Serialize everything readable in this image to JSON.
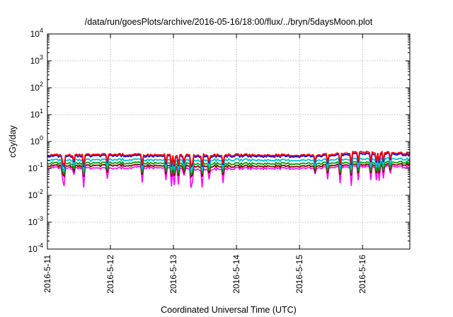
{
  "chart_data": {
    "type": "line",
    "title": "/data/run/goesPlots/archive/2016-05-16/18:00/flux/../bryn/5daysMoon.plot",
    "xlabel": "Coordinated Universal Time (UTC)",
    "ylabel": "cGy/day",
    "yscale": "log",
    "ylim": [
      0.0001,
      10000
    ],
    "y_ticks": [
      {
        "value": 0.0001,
        "base": "10",
        "exp": "-4"
      },
      {
        "value": 0.001,
        "base": "10",
        "exp": "-3"
      },
      {
        "value": 0.01,
        "base": "10",
        "exp": "-2"
      },
      {
        "value": 0.1,
        "base": "10",
        "exp": "-1"
      },
      {
        "value": 1,
        "base": "10",
        "exp": "0"
      },
      {
        "value": 10,
        "base": "10",
        "exp": "1"
      },
      {
        "value": 100,
        "base": "10",
        "exp": "2"
      },
      {
        "value": 1000,
        "base": "10",
        "exp": "3"
      },
      {
        "value": 10000,
        "base": "10",
        "exp": "4"
      }
    ],
    "xlim": [
      "2016-05-11",
      "2016-05-16 18:00"
    ],
    "x_ticks": [
      "2016-5-11",
      "2016-5-12",
      "2016-5-13",
      "2016-5-14",
      "2016-5-15",
      "2016-5-16"
    ],
    "grid": true,
    "legend": "none",
    "series": [
      {
        "color": "#ff00ff",
        "x": [
          "2016-05-11 00:00",
          "2016-05-11 12:00",
          "2016-05-12 00:00",
          "2016-05-12 12:00",
          "2016-05-13 00:00",
          "2016-05-13 12:00",
          "2016-05-14 00:00",
          "2016-05-14 12:00",
          "2016-05-15 00:00",
          "2016-05-15 12:00",
          "2016-05-16 00:00",
          "2016-05-16 12:00",
          "2016-05-16 18:00"
        ],
        "values": [
          0.11,
          0.1,
          0.1,
          0.11,
          0.1,
          0.09,
          0.1,
          0.1,
          0.1,
          0.11,
          0.12,
          0.12,
          0.11
        ]
      },
      {
        "color": "#800000",
        "x": [
          "2016-05-11 00:00",
          "2016-05-11 12:00",
          "2016-05-12 00:00",
          "2016-05-12 12:00",
          "2016-05-13 00:00",
          "2016-05-13 12:00",
          "2016-05-14 00:00",
          "2016-05-14 12:00",
          "2016-05-15 00:00",
          "2016-05-15 12:00",
          "2016-05-16 00:00",
          "2016-05-16 12:00",
          "2016-05-16 18:00"
        ],
        "values": [
          0.13,
          0.12,
          0.13,
          0.13,
          0.12,
          0.12,
          0.12,
          0.12,
          0.12,
          0.13,
          0.14,
          0.14,
          0.14
        ]
      },
      {
        "color": "#00a000",
        "x": [
          "2016-05-11 00:00",
          "2016-05-11 12:00",
          "2016-05-12 00:00",
          "2016-05-12 12:00",
          "2016-05-13 00:00",
          "2016-05-13 12:00",
          "2016-05-14 00:00",
          "2016-05-14 12:00",
          "2016-05-15 00:00",
          "2016-05-15 12:00",
          "2016-05-16 00:00",
          "2016-05-16 12:00",
          "2016-05-16 18:00"
        ],
        "values": [
          0.16,
          0.15,
          0.16,
          0.16,
          0.15,
          0.15,
          0.15,
          0.15,
          0.15,
          0.16,
          0.17,
          0.17,
          0.17
        ]
      },
      {
        "color": "#00c0d0",
        "x": [
          "2016-05-11 00:00",
          "2016-05-11 12:00",
          "2016-05-12 00:00",
          "2016-05-12 12:00",
          "2016-05-13 00:00",
          "2016-05-13 12:00",
          "2016-05-14 00:00",
          "2016-05-14 12:00",
          "2016-05-15 00:00",
          "2016-05-15 12:00",
          "2016-05-16 00:00",
          "2016-05-16 12:00",
          "2016-05-16 18:00"
        ],
        "values": [
          0.21,
          0.2,
          0.21,
          0.21,
          0.2,
          0.2,
          0.21,
          0.2,
          0.2,
          0.21,
          0.23,
          0.23,
          0.22
        ]
      },
      {
        "color": "#0000ff",
        "x": [
          "2016-05-11 00:00",
          "2016-05-11 12:00",
          "2016-05-12 00:00",
          "2016-05-12 12:00",
          "2016-05-13 00:00",
          "2016-05-13 12:00",
          "2016-05-14 00:00",
          "2016-05-14 12:00",
          "2016-05-15 00:00",
          "2016-05-15 12:00",
          "2016-05-16 00:00",
          "2016-05-16 12:00",
          "2016-05-16 18:00"
        ],
        "values": [
          0.29,
          0.28,
          0.3,
          0.29,
          0.28,
          0.28,
          0.29,
          0.28,
          0.28,
          0.3,
          0.36,
          0.34,
          0.32
        ]
      },
      {
        "color": "#ff0000",
        "x": [
          "2016-05-11 00:00",
          "2016-05-11 12:00",
          "2016-05-12 00:00",
          "2016-05-12 12:00",
          "2016-05-13 00:00",
          "2016-05-13 12:00",
          "2016-05-14 00:00",
          "2016-05-14 12:00",
          "2016-05-15 00:00",
          "2016-05-15 12:00",
          "2016-05-16 00:00",
          "2016-05-16 12:00",
          "2016-05-16 18:00"
        ],
        "values": [
          0.32,
          0.31,
          0.33,
          0.32,
          0.31,
          0.31,
          0.32,
          0.31,
          0.31,
          0.33,
          0.42,
          0.38,
          0.36
        ]
      }
    ]
  }
}
